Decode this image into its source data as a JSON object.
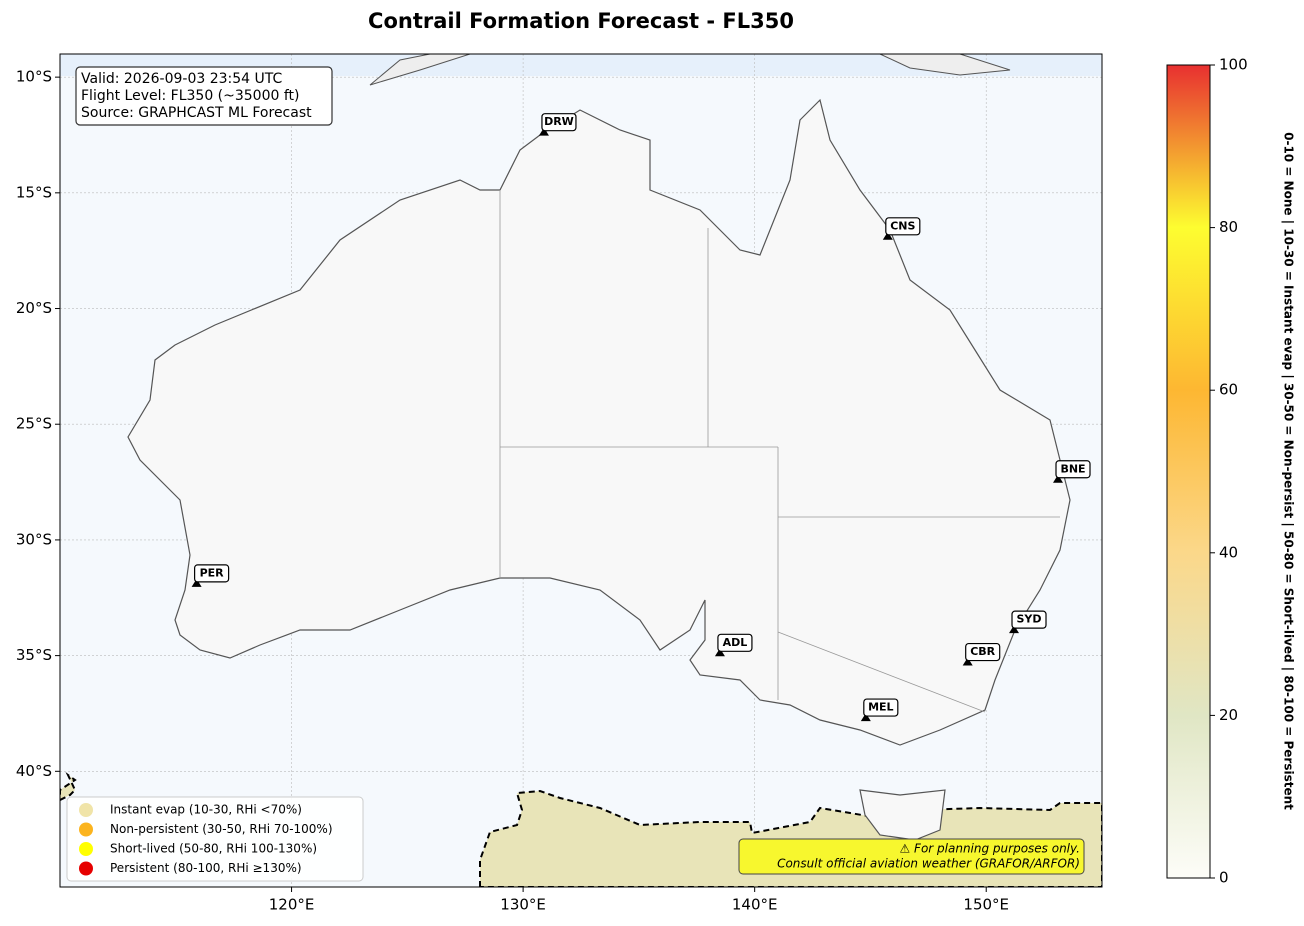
{
  "title": "Contrail Formation Forecast - FL350",
  "map": {
    "xlim": [
      110,
      155
    ],
    "ylim": [
      -45,
      -9
    ],
    "xticks": [
      {
        "value": 120,
        "label": "120°E"
      },
      {
        "value": 130,
        "label": "130°E"
      },
      {
        "value": 140,
        "label": "140°E"
      },
      {
        "value": 150,
        "label": "150°E"
      }
    ],
    "yticks": [
      {
        "value": -10,
        "label": "10°S"
      },
      {
        "value": -15,
        "label": "15°S"
      },
      {
        "value": -20,
        "label": "20°S"
      },
      {
        "value": -25,
        "label": "25°S"
      },
      {
        "value": -30,
        "label": "30°S"
      },
      {
        "value": -35,
        "label": "35°S"
      },
      {
        "value": -40,
        "label": "40°S"
      }
    ]
  },
  "info": [
    "Valid: 2026-09-03 23:54 UTC",
    "Flight Level: FL350 (~35000 ft)",
    "Source: GRAPHCAST ML Forecast"
  ],
  "airports": [
    {
      "label": "DRW",
      "lon": 130.9,
      "lat": -12.4
    },
    {
      "label": "CNS",
      "lon": 145.75,
      "lat": -16.9
    },
    {
      "label": "BNE",
      "lon": 153.1,
      "lat": -27.4
    },
    {
      "label": "PER",
      "lon": 115.9,
      "lat": -31.9
    },
    {
      "label": "SYD",
      "lon": 151.2,
      "lat": -33.9
    },
    {
      "label": "ADL",
      "lon": 138.5,
      "lat": -34.9
    },
    {
      "label": "CBR",
      "lon": 149.2,
      "lat": -35.3
    },
    {
      "label": "MEL",
      "lon": 144.8,
      "lat": -37.7
    }
  ],
  "legend": [
    {
      "label": "Instant evap (10-30, RHi <70%)",
      "color": "#f0e4a8"
    },
    {
      "label": "Non-persistent (30-50, RHi 70-100%)",
      "color": "#fbb41e"
    },
    {
      "label": "Short-lived (50-80, RHi 100-130%)",
      "color": "#ffff00"
    },
    {
      "label": "Persistent (80-100, RHi ≥130%)",
      "color": "#e60000"
    }
  ],
  "disclaimer": [
    "⚠ For planning purposes only.",
    "Consult official aviation weather (GRAFOR/ARFOR)"
  ],
  "colorbar": {
    "lim": [
      0,
      100
    ],
    "ticks": [
      0,
      20,
      40,
      60,
      80,
      100
    ],
    "colors": [
      "#fdfdf8",
      "#e0e6c4",
      "#fbd88a",
      "#fdb732",
      "#fdfd30",
      "#e83030"
    ],
    "label": "0-10 = None  |  10-30 = Instant evap  |  30-50 = Non-persist  |  50-80 = Short-lived  |  80-100 = Persistent"
  }
}
